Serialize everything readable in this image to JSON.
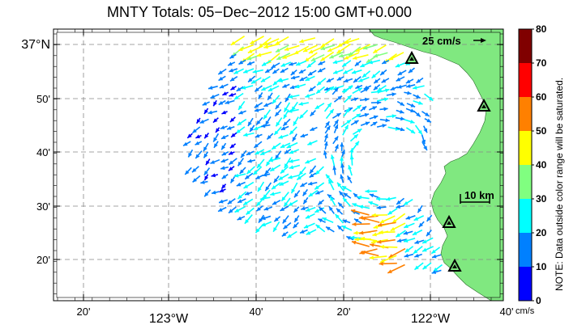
{
  "title": "MNTY Totals: 05−Dec−2012 15:00 GMT+0.000",
  "axes": {
    "lat_ticks": [
      {
        "label": "37°N",
        "major": true
      },
      {
        "label": "50'",
        "major": false
      },
      {
        "label": "40'",
        "major": false
      },
      {
        "label": "30'",
        "major": false
      },
      {
        "label": "20'",
        "major": false
      }
    ],
    "lon_ticks": [
      {
        "label": "20'",
        "major": false
      },
      {
        "label": "123°W",
        "major": true
      },
      {
        "label": "40'",
        "major": false
      },
      {
        "label": "20'",
        "major": false
      },
      {
        "label": "122°W",
        "major": true
      },
      {
        "label": "40'",
        "major": false
      }
    ]
  },
  "scale_vector_label": "25 cm/s",
  "scale_bar_label": "10 km",
  "colorbar": {
    "ticks": [
      "80",
      "70",
      "60",
      "50",
      "40",
      "30",
      "20",
      "10",
      "0"
    ],
    "unit": "cm/s",
    "note": "NOTE: Data outside color range will be saturated.",
    "colors": [
      "#800000",
      "#ff0000",
      "#ff8000",
      "#ffff00",
      "#80ff80",
      "#00ffff",
      "#0080ff",
      "#0000ff"
    ]
  },
  "colors": {
    "land": "#80e880",
    "frame": "#000000",
    "grid": "#888888"
  },
  "stations": 4
}
